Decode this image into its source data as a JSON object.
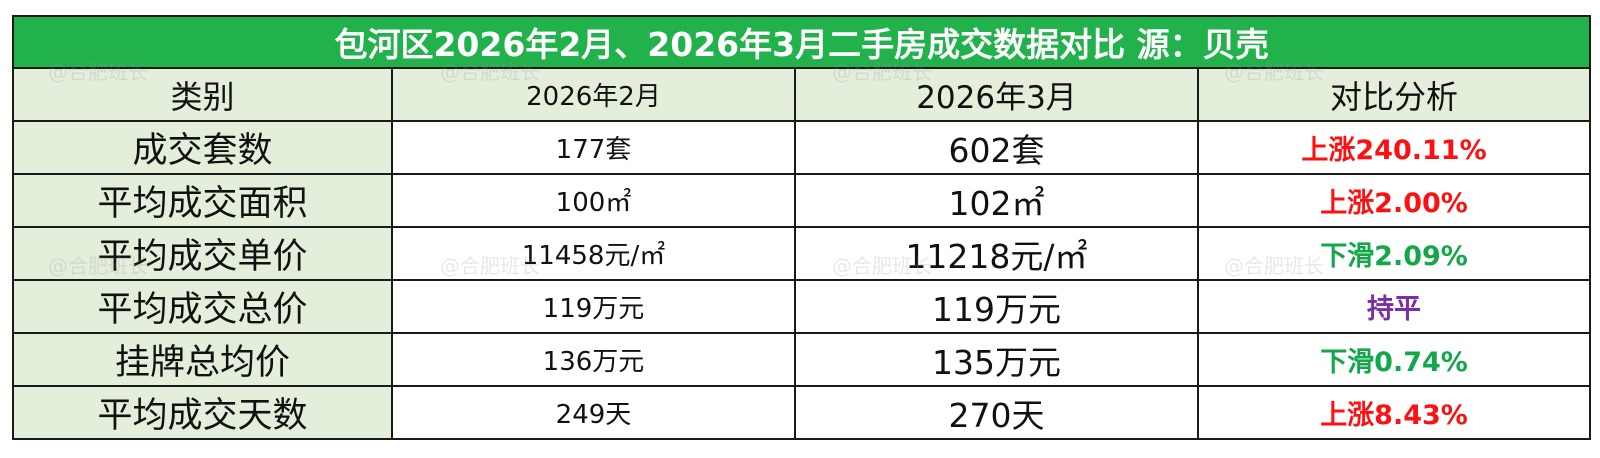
{
  "title": "包河区2026年2月、2026年3月二手房成交数据对比 源：贝壳",
  "headers": [
    "类别",
    "2026年2月",
    "2026年3月",
    "对比分析"
  ],
  "rows": [
    {
      "category": "成交套数",
      "feb": "177套",
      "mar": "602套",
      "analysis": "上涨240.11%",
      "trend": "up"
    },
    {
      "category": "平均成交面积",
      "feb": "100㎡",
      "mar": "102㎡",
      "analysis": "上涨2.00%",
      "trend": "up"
    },
    {
      "category": "平均成交单价",
      "feb": "11458元/㎡",
      "mar": "11218元/㎡",
      "analysis": "下滑2.09%",
      "trend": "down"
    },
    {
      "category": "平均成交总价",
      "feb": "119万元",
      "mar": "119万元",
      "analysis": "持平",
      "trend": "flat"
    },
    {
      "category": "挂牌总均价",
      "feb": "136万元",
      "mar": "135万元",
      "analysis": "下滑0.74%",
      "trend": "down"
    },
    {
      "category": "平均成交天数",
      "feb": "249天",
      "mar": "270天",
      "analysis": "上涨8.43%",
      "trend": "up"
    }
  ],
  "colors": {
    "up": "#ff1010",
    "down": "#12a84a",
    "flat": "#7a2ea8",
    "title_bg": "#22b24c",
    "category_bg": "#e3eedb"
  },
  "watermark": "@合肥班长"
}
